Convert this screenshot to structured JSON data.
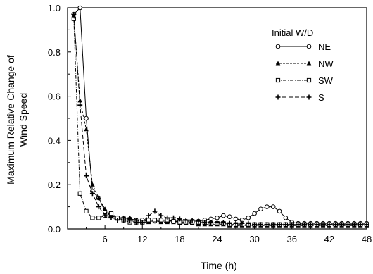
{
  "chart_data": {
    "type": "line",
    "xlabel": "Time (h)",
    "ylabel_lines": [
      "Maximum Relative Change of",
      "Wind Speed"
    ],
    "xlim": [
      0,
      48
    ],
    "ylim": [
      0,
      1.0
    ],
    "x_ticks": [
      6,
      12,
      18,
      24,
      30,
      36,
      42,
      48
    ],
    "y_ticks": [
      0.0,
      0.2,
      0.4,
      0.6,
      0.8,
      1.0
    ],
    "y_tick_labels": [
      "0.0",
      "0.2",
      "0.4",
      "0.6",
      "0.8",
      "1.0"
    ],
    "grid": false,
    "legend_title": "Initial W/D",
    "legend_position": "top-right",
    "series": [
      {
        "name": "NE",
        "marker": "circle-open",
        "dash": "solid",
        "x": [
          1,
          2,
          3,
          4,
          5,
          6,
          7,
          8,
          9,
          10,
          11,
          12,
          13,
          14,
          15,
          16,
          17,
          18,
          19,
          20,
          21,
          22,
          23,
          24,
          25,
          26,
          27,
          28,
          29,
          30,
          31,
          32,
          33,
          34,
          35,
          36,
          37,
          38,
          39,
          40,
          41,
          42,
          43,
          44,
          45,
          46,
          47,
          48
        ],
        "y": [
          0.97,
          1.0,
          0.5,
          0.17,
          0.14,
          0.08,
          0.06,
          0.05,
          0.05,
          0.045,
          0.04,
          0.04,
          0.035,
          0.035,
          0.035,
          0.035,
          0.035,
          0.035,
          0.035,
          0.035,
          0.035,
          0.04,
          0.045,
          0.05,
          0.06,
          0.055,
          0.045,
          0.04,
          0.05,
          0.07,
          0.09,
          0.1,
          0.1,
          0.08,
          0.05,
          0.03,
          0.025,
          0.025,
          0.025,
          0.025,
          0.025,
          0.025,
          0.025,
          0.025,
          0.025,
          0.025,
          0.025,
          0.025
        ]
      },
      {
        "name": "NW",
        "marker": "triangle-filled",
        "dash": "short-dash",
        "x": [
          1,
          2,
          3,
          4,
          5,
          6,
          7,
          8,
          9,
          10,
          11,
          12,
          13,
          14,
          15,
          16,
          17,
          18,
          19,
          20,
          21,
          22,
          23,
          24,
          25,
          26,
          27,
          28,
          29,
          30,
          31,
          32,
          33,
          34,
          35,
          36,
          37,
          38,
          39,
          40,
          41,
          42,
          43,
          44,
          45,
          46,
          47,
          48
        ],
        "y": [
          0.96,
          0.58,
          0.45,
          0.2,
          0.14,
          0.09,
          0.06,
          0.05,
          0.05,
          0.05,
          0.04,
          0.03,
          0.03,
          0.04,
          0.03,
          0.03,
          0.03,
          0.025,
          0.025,
          0.025,
          0.02,
          0.02,
          0.02,
          0.02,
          0.02,
          0.015,
          0.015,
          0.015,
          0.015,
          0.015,
          0.015,
          0.015,
          0.015,
          0.015,
          0.015,
          0.015,
          0.015,
          0.015,
          0.015,
          0.015,
          0.015,
          0.015,
          0.015,
          0.015,
          0.015,
          0.015,
          0.015,
          0.015
        ]
      },
      {
        "name": "SW",
        "marker": "square-open",
        "dash": "dash-dot",
        "x": [
          1,
          2,
          3,
          4,
          5,
          6,
          7,
          8,
          9,
          10,
          11,
          12,
          13,
          14,
          15,
          16,
          17,
          18,
          19,
          20,
          21,
          22,
          23,
          24,
          25,
          26,
          27,
          28,
          29,
          30,
          31,
          32,
          33,
          34,
          35,
          36,
          37,
          38,
          39,
          40,
          41,
          42,
          43,
          44,
          45,
          46,
          47,
          48
        ],
        "y": [
          0.95,
          0.16,
          0.08,
          0.05,
          0.05,
          0.06,
          0.07,
          0.05,
          0.04,
          0.03,
          0.03,
          0.03,
          0.04,
          0.04,
          0.04,
          0.04,
          0.035,
          0.03,
          0.03,
          0.03,
          0.03,
          0.03,
          0.025,
          0.025,
          0.025,
          0.02,
          0.02,
          0.02,
          0.02,
          0.02,
          0.02,
          0.02,
          0.02,
          0.02,
          0.02,
          0.02,
          0.02,
          0.02,
          0.02,
          0.02,
          0.02,
          0.02,
          0.02,
          0.02,
          0.02,
          0.02,
          0.02,
          0.02
        ]
      },
      {
        "name": "S",
        "marker": "plus",
        "dash": "long-dash",
        "x": [
          1,
          2,
          3,
          4,
          5,
          6,
          7,
          8,
          9,
          10,
          11,
          12,
          13,
          14,
          15,
          16,
          17,
          18,
          19,
          20,
          21,
          22,
          23,
          24,
          25,
          26,
          27,
          28,
          29,
          30,
          31,
          32,
          33,
          34,
          35,
          36,
          37,
          38,
          39,
          40,
          41,
          42,
          43,
          44,
          45,
          46,
          47,
          48
        ],
        "y": [
          0.97,
          0.56,
          0.24,
          0.16,
          0.1,
          0.06,
          0.05,
          0.04,
          0.04,
          0.04,
          0.03,
          0.03,
          0.06,
          0.08,
          0.06,
          0.05,
          0.05,
          0.045,
          0.04,
          0.04,
          0.035,
          0.03,
          0.03,
          0.03,
          0.03,
          0.025,
          0.025,
          0.025,
          0.025,
          0.02,
          0.02,
          0.02,
          0.02,
          0.02,
          0.02,
          0.02,
          0.02,
          0.02,
          0.02,
          0.02,
          0.02,
          0.02,
          0.02,
          0.02,
          0.02,
          0.02,
          0.02,
          0.02
        ]
      }
    ]
  }
}
